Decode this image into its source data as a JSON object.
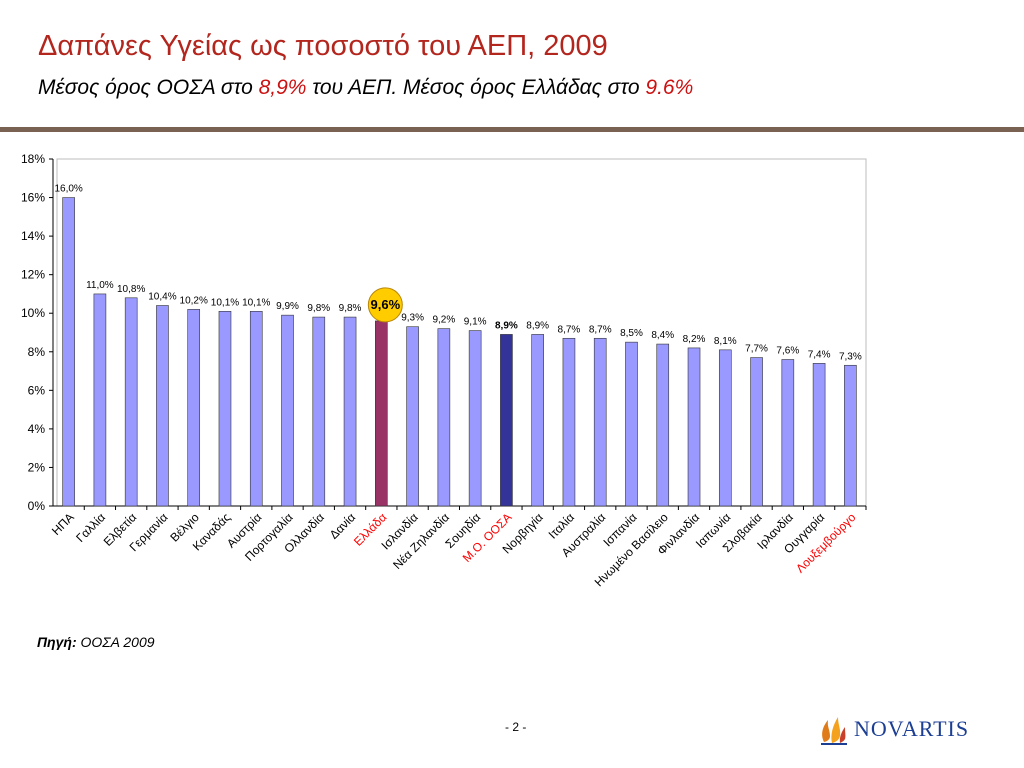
{
  "header": {
    "title": "Δαπάνες Υγείας ως ποσοστό του ΑΕΠ, 2009",
    "subtitle_part1": "Μέσος όρος ΟΟΣΑ στο ",
    "subtitle_hl1": "8,9%",
    "subtitle_part2": " του ΑΕΠ. Μέσος όρος Ελλάδας στο ",
    "subtitle_hl2": "9.6%"
  },
  "footer": {
    "source_label": "Πηγή:",
    "source_text": " ΟΟΣΑ 2009",
    "page_number": "- 2 -",
    "logo_text": "NOVARTIS"
  },
  "colors": {
    "title": "#b3261e",
    "bar_default": "#9999ff",
    "bar_greece": "#993366",
    "bar_oecd": "#333399",
    "label_highlight": "#ff0000",
    "greece_badge": "#ffcc00"
  },
  "chart_data": {
    "type": "bar",
    "ylim": [
      0,
      18
    ],
    "ytick_step": 2,
    "ytick_labels": [
      "0%",
      "2%",
      "4%",
      "6%",
      "8%",
      "10%",
      "12%",
      "14%",
      "16%",
      "18%"
    ],
    "grid": false,
    "categories": [
      "ΗΠΑ",
      "Γαλλία",
      "Ελβετία",
      "Γερμανία",
      "Βέλγιο",
      "Καναδάς",
      "Αυστρία",
      "Πορτογαλία",
      "Ολλανδία",
      "Δανία",
      "Ελλάδα",
      "Ισλανδία",
      "Νέα Ζηλανδία",
      "Σουηδία",
      "Μ.Ο. ΟΟΣΑ",
      "Νορβηγία",
      "Ιταλία",
      "Αυστραλία",
      "Ισπανία",
      "Ηνωμένο Βασίλειο",
      "Φινλανδία",
      "Ιαπωνία",
      "Σλοβακία",
      "Ιρλανδία",
      "Ουγγαρία",
      "Λουξεμβούργο"
    ],
    "values": [
      16.0,
      11.0,
      10.8,
      10.4,
      10.2,
      10.1,
      10.1,
      9.9,
      9.8,
      9.8,
      9.6,
      9.3,
      9.2,
      9.1,
      8.9,
      8.9,
      8.7,
      8.7,
      8.5,
      8.4,
      8.2,
      8.1,
      7.7,
      7.6,
      7.4,
      7.3
    ],
    "value_labels": [
      "16,0%",
      "11,0%",
      "10,8%",
      "10,4%",
      "10,2%",
      "10,1%",
      "10,1%",
      "9,9%",
      "9,8%",
      "9,8%",
      "9,6%",
      "9,3%",
      "9,2%",
      "9,1%",
      "8,9%",
      "8,9%",
      "8,7%",
      "8,7%",
      "8,5%",
      "8,4%",
      "8,2%",
      "8,1%",
      "7,7%",
      "7,6%",
      "7,4%",
      "7,3%"
    ],
    "highlight_greece_index": 10,
    "highlight_oecd_index": 14,
    "red_label_indices": [
      10,
      14,
      25
    ]
  }
}
